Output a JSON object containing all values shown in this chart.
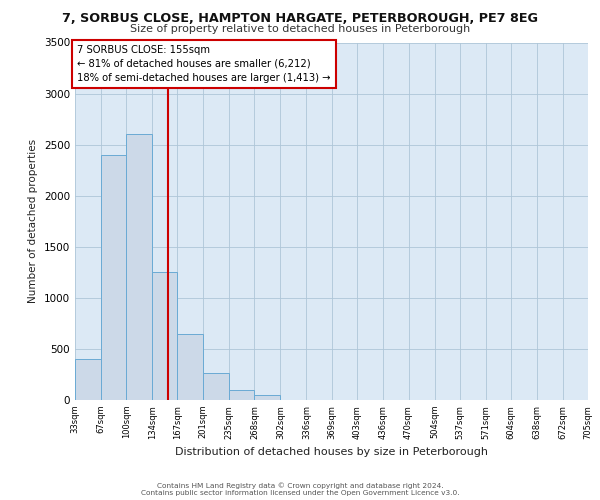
{
  "title1": "7, SORBUS CLOSE, HAMPTON HARGATE, PETERBOROUGH, PE7 8EG",
  "title2": "Size of property relative to detached houses in Peterborough",
  "xlabel": "Distribution of detached houses by size in Peterborough",
  "ylabel": "Number of detached properties",
  "bar_values": [
    400,
    2400,
    2600,
    1250,
    650,
    260,
    100,
    50,
    0,
    0,
    0,
    0,
    0,
    0,
    0,
    0,
    0,
    0,
    0,
    0
  ],
  "bar_color": "#ccd9e8",
  "bar_edge_color": "#6aaad4",
  "vline_x": 155,
  "vline_color": "#cc0000",
  "annotation_line1": "7 SORBUS CLOSE: 155sqm",
  "annotation_line2": "← 81% of detached houses are smaller (6,212)",
  "annotation_line3": "18% of semi-detached houses are larger (1,413) →",
  "annotation_box_color": "#ffffff",
  "annotation_box_edge": "#cc0000",
  "ylim": [
    0,
    3500
  ],
  "yticks": [
    0,
    500,
    1000,
    1500,
    2000,
    2500,
    3000,
    3500
  ],
  "footer1": "Contains HM Land Registry data © Crown copyright and database right 2024.",
  "footer2": "Contains public sector information licensed under the Open Government Licence v3.0.",
  "plot_bg_color": "#dce9f5",
  "bin_edges": [
    33,
    67,
    100,
    134,
    167,
    201,
    235,
    268,
    302,
    336,
    369,
    403,
    436,
    470,
    504,
    537,
    571,
    604,
    638,
    672,
    705
  ]
}
